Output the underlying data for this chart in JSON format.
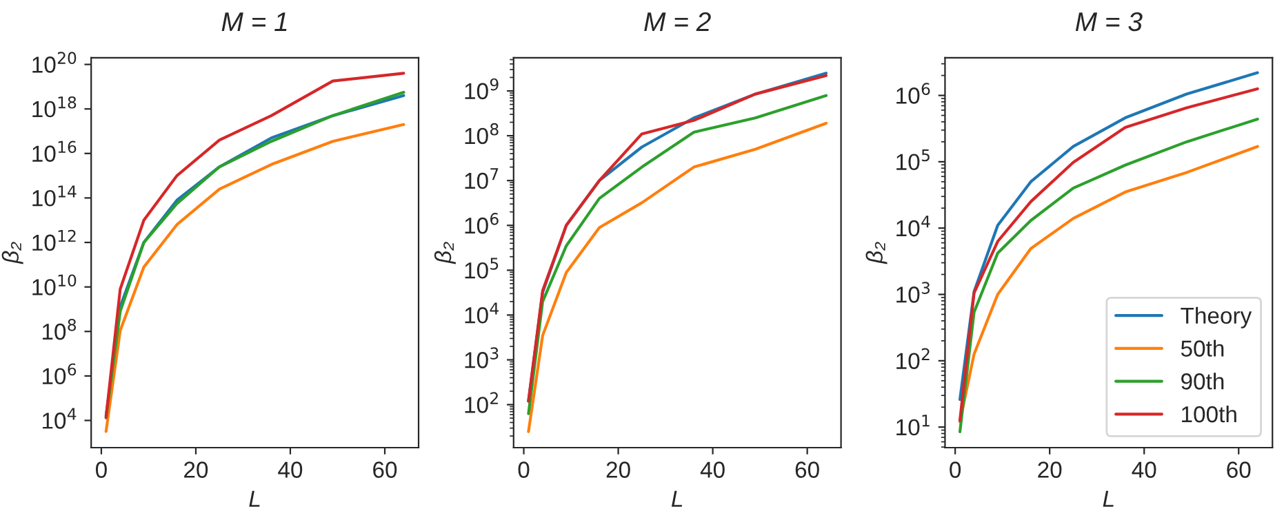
{
  "chart_data": [
    {
      "type": "line",
      "title": "M = 1",
      "xlabel": "L",
      "ylabel": "β₂",
      "log": "y",
      "grid": false,
      "legend": false,
      "x": [
        1,
        4,
        9,
        16,
        25,
        36,
        49,
        64
      ],
      "xlim": [
        -2.15,
        67.15
      ],
      "xticks": [
        0,
        20,
        40,
        60
      ],
      "ylim": [
        600,
        2e+20
      ],
      "yticks": [
        {
          "value": 10000.0,
          "label": "10$^{4}$"
        },
        {
          "value": 1000000.0,
          "label": "10$^{6}$"
        },
        {
          "value": 100000000.0,
          "label": "10$^{8}$"
        },
        {
          "value": 10000000000.0,
          "label": "10$^{10}$"
        },
        {
          "value": 1000000000000.0,
          "label": "10$^{12}$"
        },
        {
          "value": 100000000000000.0,
          "label": "10$^{14}$"
        },
        {
          "value": 1e+16,
          "label": "10$^{16}$"
        },
        {
          "value": 1e+18,
          "label": "10$^{18}$"
        },
        {
          "value": 1e+20,
          "label": "10$^{20}$"
        }
      ],
      "series": [
        {
          "color": "#1f77b4",
          "values": [
            16000.0,
            1300000000.0,
            1000000000000.0,
            79000000000000.0,
            2500000000000000.0,
            5e+16,
            5e+17,
            4e+18
          ]
        },
        {
          "color": "#ff7f0e",
          "values": [
            3200.0,
            110000000.0,
            79000000000.0,
            6300000000000.0,
            250000000000000.0,
            3200000000000000.0,
            3.5e+16,
            2e+17
          ]
        },
        {
          "color": "#2ca02c",
          "values": [
            13000.0,
            800000000.0,
            1000000000000.0,
            56000000000000.0,
            2500000000000000.0,
            3.5e+16,
            5e+17,
            5.6e+18
          ]
        },
        {
          "color": "#d62728",
          "values": [
            14000.0,
            8000000000.0,
            10000000000000.0,
            1000000000000000.0,
            4e+16,
            5e+17,
            1.8e+19,
            4e+19
          ]
        }
      ]
    },
    {
      "type": "line",
      "title": "M = 2",
      "xlabel": "L",
      "ylabel": "β₂",
      "log": "y",
      "grid": false,
      "legend": false,
      "x": [
        1,
        4,
        9,
        16,
        25,
        36,
        49,
        64
      ],
      "xlim": [
        -2.15,
        67.15
      ],
      "xticks": [
        0,
        20,
        40,
        60
      ],
      "ylim": [
        11,
        5500000000.0
      ],
      "yticks": [
        {
          "value": 100.0,
          "label": "10$^{2}$"
        },
        {
          "value": 1000.0,
          "label": "10$^{3}$"
        },
        {
          "value": 10000.0,
          "label": "10$^{4}$"
        },
        {
          "value": 100000.0,
          "label": "10$^{5}$"
        },
        {
          "value": 1000000.0,
          "label": "10$^{6}$"
        },
        {
          "value": 10000000.0,
          "label": "10$^{7}$"
        },
        {
          "value": 100000000.0,
          "label": "10$^{8}$"
        },
        {
          "value": 1000000000.0,
          "label": "10$^{9}$"
        }
      ],
      "series": [
        {
          "color": "#1f77b4",
          "values": [
            120,
            32000.0,
            1000000.0,
            10000000.0,
            56000000.0,
            250000000.0,
            850000000.0,
            2500000000.0
          ]
        },
        {
          "color": "#ff7f0e",
          "values": [
            25,
            3500.0,
            89000.0,
            890000.0,
            3200000.0,
            20000000.0,
            50000000.0,
            190000000.0
          ]
        },
        {
          "color": "#2ca02c",
          "values": [
            63,
            20000.0,
            350000.0,
            4000000.0,
            20000000.0,
            120000000.0,
            250000000.0,
            790000000.0
          ]
        },
        {
          "color": "#d62728",
          "values": [
            120,
            35000.0,
            1000000.0,
            10000000.0,
            110000000.0,
            220000000.0,
            850000000.0,
            2200000000.0
          ]
        }
      ]
    },
    {
      "type": "line",
      "title": "M = 3",
      "xlabel": "L",
      "ylabel": "β₂",
      "log": "y",
      "grid": false,
      "legend": "bottom right",
      "x": [
        1,
        4,
        9,
        16,
        25,
        36,
        49,
        64
      ],
      "xlim": [
        -2.15,
        67.15
      ],
      "xticks": [
        0,
        20,
        40,
        60
      ],
      "ylim": [
        4.9,
        3700000.0
      ],
      "yticks": [
        {
          "value": 10.0,
          "label": "10$^{1}$"
        },
        {
          "value": 100.0,
          "label": "10$^{2}$"
        },
        {
          "value": 1000.0,
          "label": "10$^{3}$"
        },
        {
          "value": 10000.0,
          "label": "10$^{4}$"
        },
        {
          "value": 100000.0,
          "label": "10$^{5}$"
        },
        {
          "value": 1000000.0,
          "label": "10$^{6}$"
        }
      ],
      "series": [
        {
          "name": "Theory",
          "color": "#1f77b4",
          "values": [
            26,
            1100.0,
            11000.0,
            50000.0,
            170000.0,
            460000.0,
            1050000.0,
            2200000.0
          ]
        },
        {
          "name": "50th",
          "color": "#ff7f0e",
          "values": [
            12,
            126,
            1000.0,
            4900.0,
            14000.0,
            35000.0,
            69000.0,
            170000.0
          ]
        },
        {
          "name": "90th",
          "color": "#2ca02c",
          "values": [
            8.5,
            540,
            4200.0,
            13000.0,
            40000.0,
            89000.0,
            200000.0,
            440000.0
          ]
        },
        {
          "name": "100th",
          "color": "#d62728",
          "values": [
            12.6,
            1050.0,
            6300.0,
            25000.0,
            98000.0,
            330000.0,
            650000.0,
            1260000.0
          ]
        }
      ]
    }
  ]
}
